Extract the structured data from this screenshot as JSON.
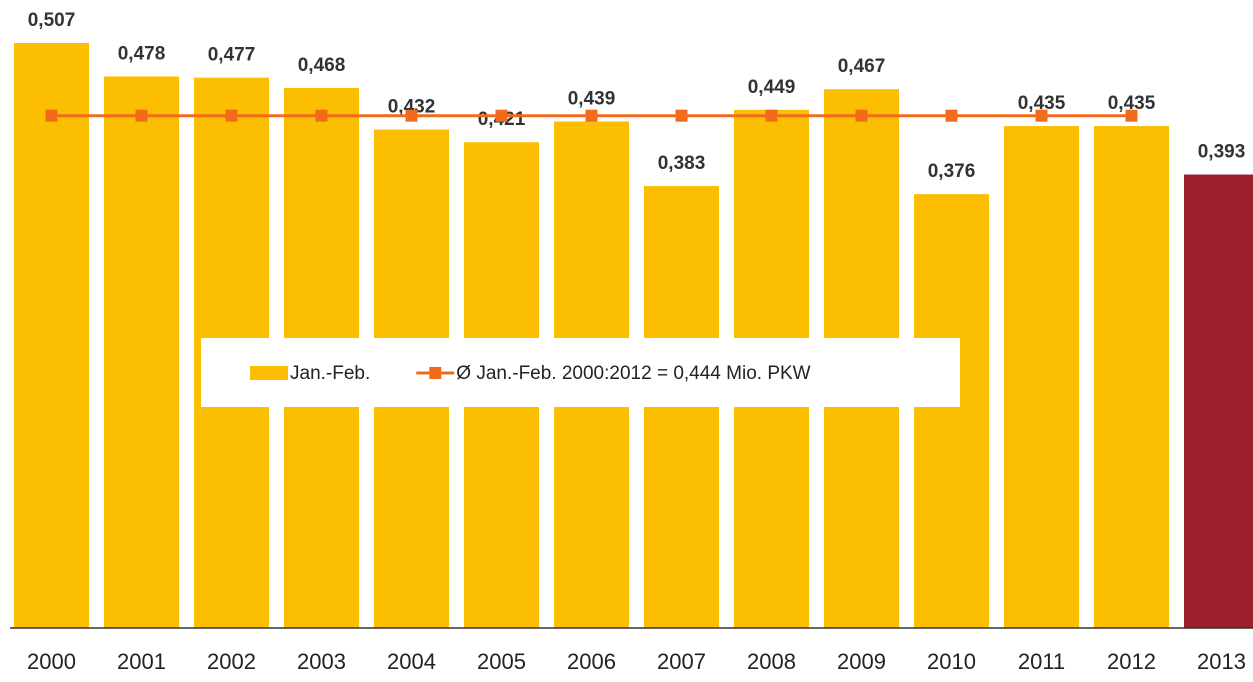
{
  "chart_data": {
    "type": "bar",
    "categories": [
      "2000",
      "2001",
      "2002",
      "2003",
      "2004",
      "2005",
      "2006",
      "2007",
      "2008",
      "2009",
      "2010",
      "2011",
      "2012",
      "2013"
    ],
    "series": [
      {
        "name": "Jan.-Feb.",
        "type": "bar",
        "color": "#fbbe00",
        "colors": [
          "#fbbe00",
          "#fbbe00",
          "#fbbe00",
          "#fbbe00",
          "#fbbe00",
          "#fbbe00",
          "#fbbe00",
          "#fbbe00",
          "#fbbe00",
          "#fbbe00",
          "#fbbe00",
          "#fbbe00",
          "#fbbe00",
          "#9b1f2b"
        ],
        "values": [
          0.507,
          0.478,
          0.477,
          0.468,
          0.432,
          0.421,
          0.439,
          0.383,
          0.449,
          0.467,
          0.376,
          0.435,
          0.435,
          0.393
        ],
        "value_labels": [
          "0,507",
          "0,478",
          "0,477",
          "0,468",
          "0,432",
          "0,421",
          "0,439",
          "0,383",
          "0,449",
          "0,467",
          "0,376",
          "0,435",
          "0,435",
          "0,393"
        ]
      },
      {
        "name": "Ø Jan.-Feb. 2000:2012 = 0,444 Mio. PKW",
        "type": "line",
        "color": "#f26b1d",
        "values": [
          0.444,
          0.444,
          0.444,
          0.444,
          0.444,
          0.444,
          0.444,
          0.444,
          0.444,
          0.444,
          0.444,
          0.444,
          0.444,
          null
        ]
      }
    ],
    "legend": "center"
  }
}
